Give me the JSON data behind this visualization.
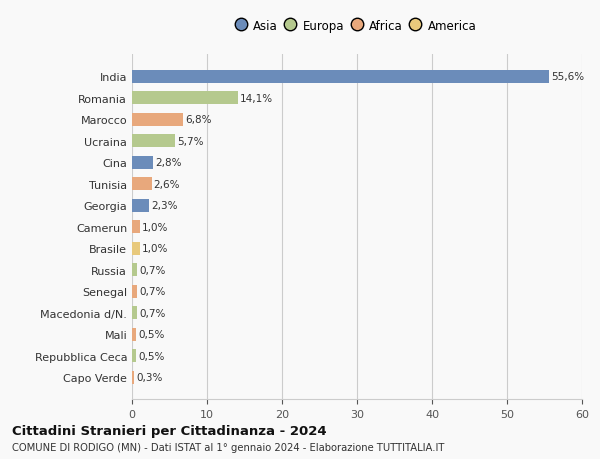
{
  "countries": [
    "India",
    "Romania",
    "Marocco",
    "Ucraina",
    "Cina",
    "Tunisia",
    "Georgia",
    "Camerun",
    "Brasile",
    "Russia",
    "Senegal",
    "Macedonia d/N.",
    "Mali",
    "Repubblica Ceca",
    "Capo Verde"
  ],
  "values": [
    55.6,
    14.1,
    6.8,
    5.7,
    2.8,
    2.6,
    2.3,
    1.0,
    1.0,
    0.7,
    0.7,
    0.7,
    0.5,
    0.5,
    0.3
  ],
  "labels": [
    "55,6%",
    "14,1%",
    "6,8%",
    "5,7%",
    "2,8%",
    "2,6%",
    "2,3%",
    "1,0%",
    "1,0%",
    "0,7%",
    "0,7%",
    "0,7%",
    "0,5%",
    "0,5%",
    "0,3%"
  ],
  "colors": [
    "#6b8cba",
    "#b5c98e",
    "#e8a87c",
    "#b5c98e",
    "#6b8cba",
    "#e8a87c",
    "#6b8cba",
    "#e8a87c",
    "#e8c97c",
    "#b5c98e",
    "#e8a87c",
    "#b5c98e",
    "#e8a87c",
    "#b5c98e",
    "#e8a87c"
  ],
  "legend_labels": [
    "Asia",
    "Europa",
    "Africa",
    "America"
  ],
  "legend_colors": [
    "#6b8cba",
    "#b5c98e",
    "#e8a87c",
    "#e8c97c"
  ],
  "xlim": [
    0,
    60
  ],
  "xticks": [
    0,
    10,
    20,
    30,
    40,
    50,
    60
  ],
  "title": "Cittadini Stranieri per Cittadinanza - 2024",
  "subtitle": "COMUNE DI RODIGO (MN) - Dati ISTAT al 1° gennaio 2024 - Elaborazione TUTTITALIA.IT",
  "background_color": "#f9f9f9",
  "grid_color": "#cccccc"
}
